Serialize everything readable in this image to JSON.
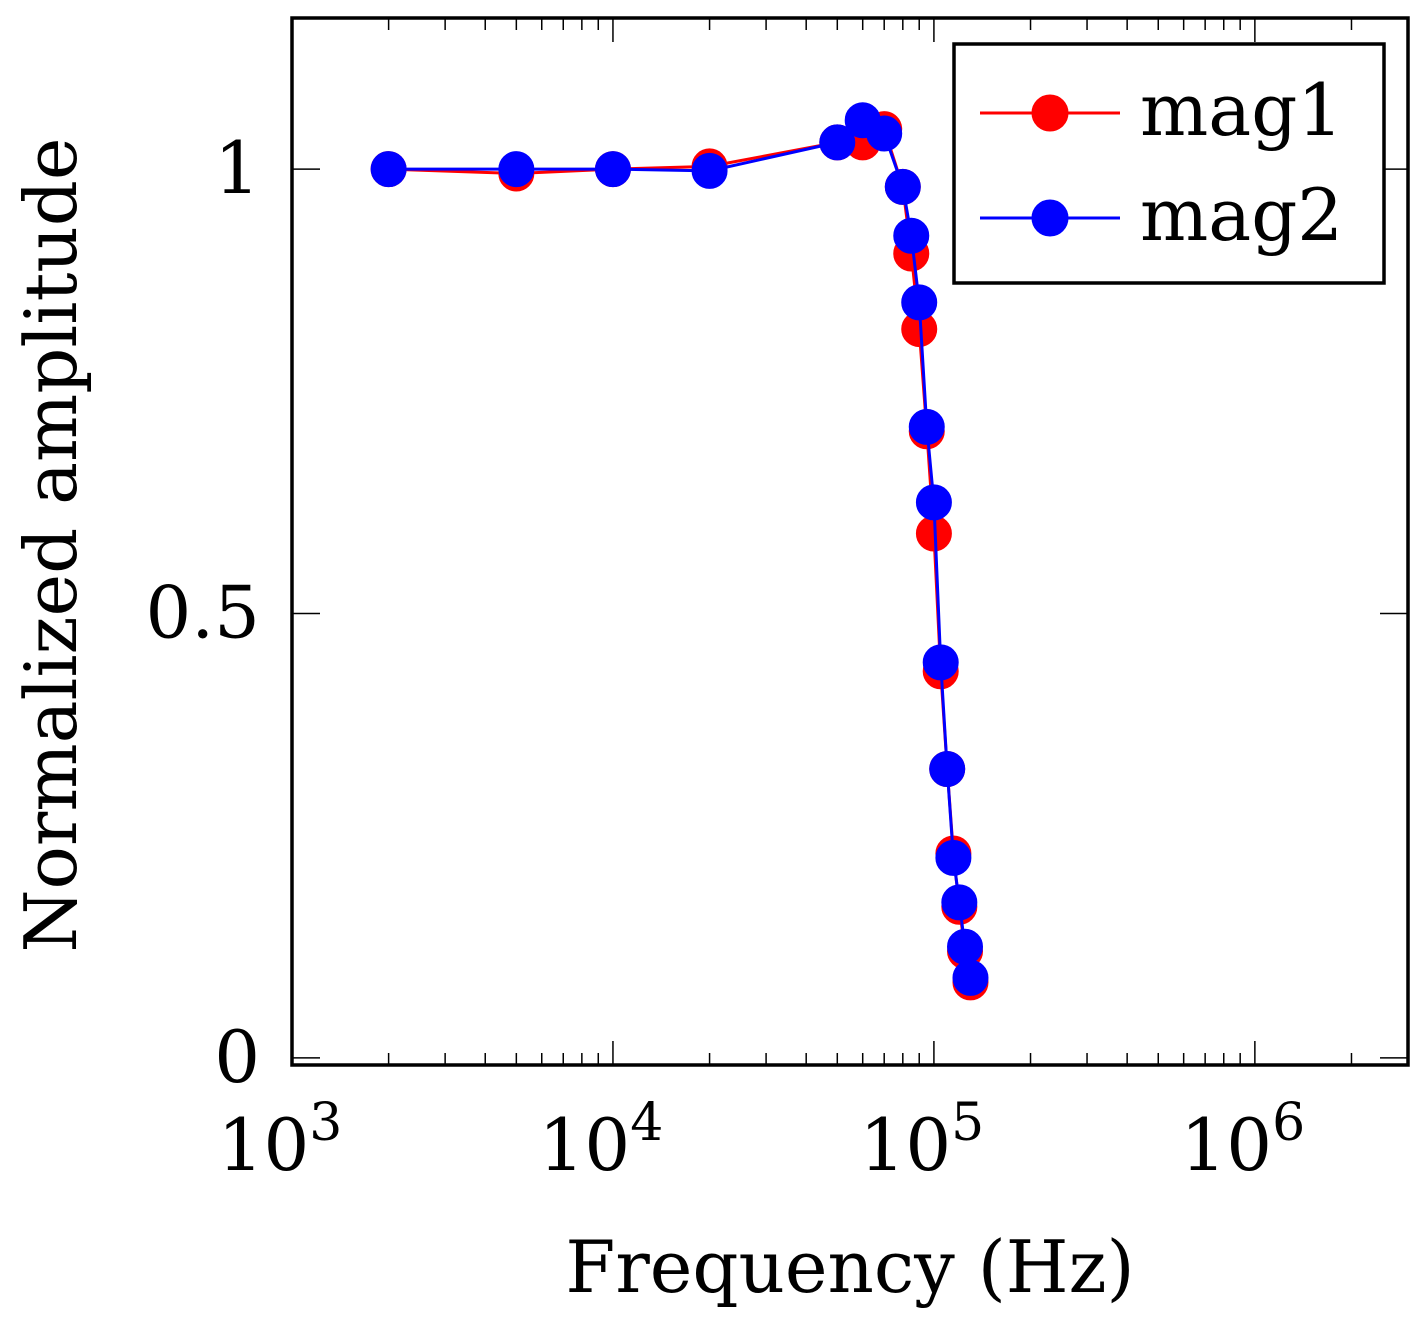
{
  "chart_data": {
    "type": "line",
    "xscale": "log",
    "xlabel": "Frequency (Hz)",
    "ylabel": "Normalized amplitude",
    "xlim": [
      1000,
      3000000
    ],
    "ylim": [
      -0.008,
      1.17
    ],
    "x_ticks": [
      {
        "base": "10",
        "exp": "3",
        "value": 1000
      },
      {
        "base": "10",
        "exp": "4",
        "value": 10000
      },
      {
        "base": "10",
        "exp": "5",
        "value": 100000
      },
      {
        "base": "10",
        "exp": "6",
        "value": 1000000
      }
    ],
    "y_ticks": [
      {
        "label": "0",
        "value": 0
      },
      {
        "label": "0.5",
        "value": 0.5
      },
      {
        "label": "1",
        "value": 1
      }
    ],
    "legend_position": "top-right",
    "series": [
      {
        "name": "mag1",
        "color": "#ff0000",
        "x": [
          2000,
          5000,
          10000,
          20000,
          50000,
          60000,
          70000,
          80000,
          85000,
          90000,
          95000,
          100000,
          105000,
          110000,
          115000,
          120000,
          125000,
          130000
        ],
        "y": [
          1.0,
          0.995,
          1.0,
          1.003,
          1.03,
          1.03,
          1.045,
          0.98,
          0.905,
          0.82,
          0.705,
          0.59,
          0.435,
          0.325,
          0.23,
          0.17,
          0.12,
          0.085
        ]
      },
      {
        "name": "mag2",
        "color": "#0000ff",
        "x": [
          2000,
          5000,
          10000,
          20000,
          50000,
          60000,
          70000,
          80000,
          85000,
          90000,
          95000,
          100000,
          105000,
          110000,
          115000,
          120000,
          125000,
          130000
        ],
        "y": [
          1.0,
          1.0,
          1.0,
          0.998,
          1.03,
          1.055,
          1.04,
          0.98,
          0.925,
          0.85,
          0.71,
          0.625,
          0.445,
          0.325,
          0.225,
          0.175,
          0.125,
          0.09
        ]
      }
    ]
  }
}
